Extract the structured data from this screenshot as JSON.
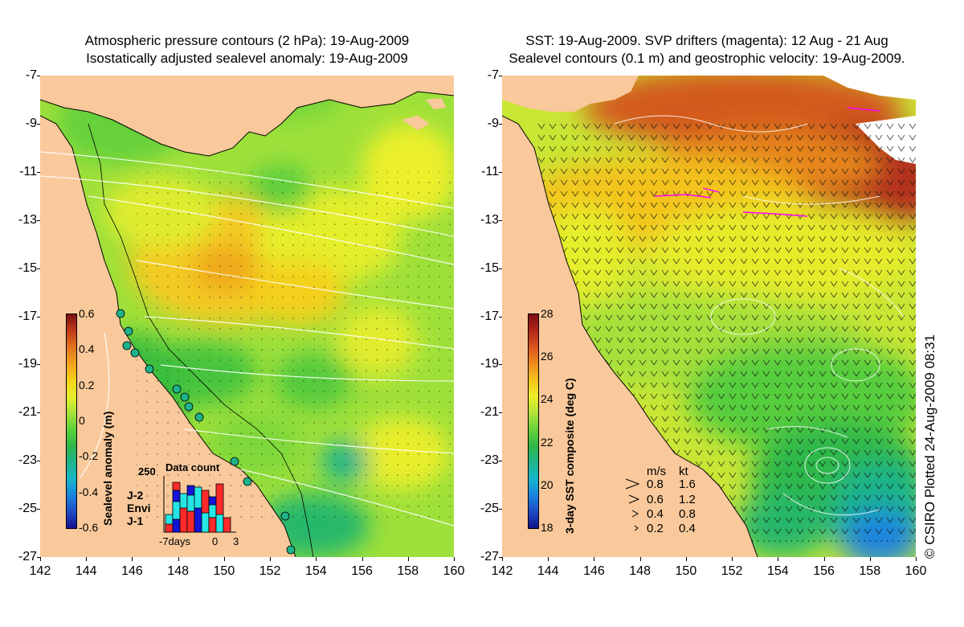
{
  "left_panel": {
    "title_line1": "Atmospheric pressure contours (2 hPa): 19-Aug-2009",
    "title_line2": "Isostatically adjusted sealevel anomaly: 19-Aug-2009",
    "colorbar": {
      "title": "Sealevel anomaly (m)",
      "ticks": [
        "0.6",
        "0.4",
        "0.2",
        "0",
        "-0.2",
        "-0.4",
        "-0.6"
      ],
      "colors": [
        "#7a0f10",
        "#c23b1a",
        "#e2741e",
        "#f0a21e",
        "#f5d11a",
        "#e6ef2a",
        "#a6e23a",
        "#5ed13a",
        "#2fb84a",
        "#1fb38a",
        "#15b6c9",
        "#1a84df",
        "#1f4bc6",
        "#13128a"
      ]
    },
    "data_count": {
      "title": "Data count",
      "ymax_label": "250",
      "x_labels": [
        "-7days",
        "0",
        "3"
      ],
      "satellites": [
        {
          "name": "J-2",
          "color": "#ff2a2a"
        },
        {
          "name": "Envi",
          "color": "#25e6e6"
        },
        {
          "name": "J-1",
          "color": "#1414d8"
        }
      ]
    }
  },
  "right_panel": {
    "title_line1": "SST: 19-Aug-2009. SVP drifters (magenta): 12 Aug - 21 Aug",
    "title_line2": "Sealevel contours (0.1 m) and geostrophic velocity: 19-Aug-2009.",
    "colorbar": {
      "title": "3-day SST composite (deg C)",
      "ticks": [
        "28",
        "26",
        "24",
        "22",
        "20",
        "18"
      ],
      "colors": [
        "#7a0f10",
        "#b3261a",
        "#d9561e",
        "#ee8a1e",
        "#f5c21a",
        "#eeee2a",
        "#b2e23a",
        "#66d13a",
        "#2fb84a",
        "#1fb38a",
        "#15b6c9",
        "#1a84df",
        "#1f4bc6",
        "#13128a"
      ]
    },
    "velocity_legend": {
      "header_ms": "m/s",
      "header_kt": "kt",
      "rows": [
        {
          "ms": "0.8",
          "kt": "1.6"
        },
        {
          "ms": "0.6",
          "kt": "1.2"
        },
        {
          "ms": "0.4",
          "kt": "0.8"
        },
        {
          "ms": "0.2",
          "kt": "0.4"
        }
      ]
    }
  },
  "axes": {
    "lat_ticks": [
      "-7",
      "-9",
      "-11",
      "-13",
      "-15",
      "-17",
      "-19",
      "-21",
      "-23",
      "-25",
      "-27"
    ],
    "lon_ticks": [
      "142",
      "144",
      "146",
      "148",
      "150",
      "152",
      "154",
      "156",
      "158",
      "160"
    ]
  },
  "copyright": "© CSIRO Plotted 24-Aug-2009 08:31",
  "colors": {
    "land": "#f9c99b",
    "sla_background": "#9ee03a",
    "sst_background": "#c9e635"
  }
}
